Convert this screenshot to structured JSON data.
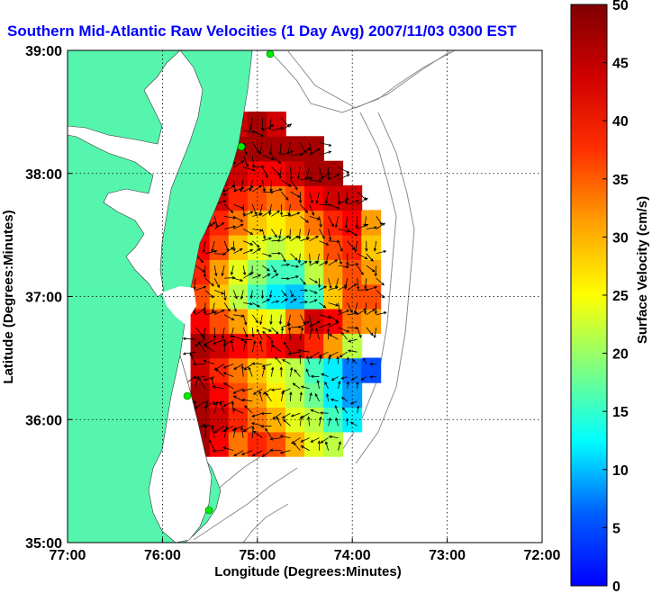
{
  "chart_data": {
    "type": "heatmap",
    "title": "Southern Mid-Atlantic Raw Velocities (1 Day Avg) 2007/11/03 0300 EST",
    "xlabel": "Longitude (Degrees:Minutes)",
    "ylabel": "Latitude (Degrees:Minutes)",
    "colorbar_label": "Surface Velocity (cm/s)",
    "x_ticks": [
      "77:00",
      "76:00",
      "75:00",
      "74:00",
      "73:00",
      "72:00"
    ],
    "y_ticks": [
      "39:00",
      "38:00",
      "37:00",
      "36:00",
      "35:00"
    ],
    "colorbar_ticks": [
      "50",
      "45",
      "40",
      "35",
      "30",
      "25",
      "20",
      "15",
      "10",
      "5",
      "0"
    ],
    "xlim": [
      -77,
      -72
    ],
    "ylim": [
      35,
      39
    ],
    "clim": [
      0,
      50
    ],
    "grid": "dotted",
    "colormap": "jet",
    "land_color": "#55f5ad",
    "title_color": "#0000ff",
    "field": {
      "lon": [
        -75.6,
        -75.4,
        -75.2,
        -75.0,
        -74.8,
        -74.6,
        -74.4,
        -74.2,
        -74.0,
        -73.8
      ],
      "lat": [
        35.8,
        36.0,
        36.2,
        36.4,
        36.6,
        36.8,
        37.0,
        37.2,
        37.4,
        37.6,
        37.8,
        38.0,
        38.2,
        38.4
      ],
      "speed": [
        [
          48,
          44,
          38,
          42,
          40,
          35,
          30,
          28,
          0,
          0
        ],
        [
          48,
          46,
          42,
          38,
          35,
          30,
          28,
          22,
          18,
          0
        ],
        [
          48,
          44,
          40,
          36,
          32,
          28,
          24,
          18,
          14,
          0
        ],
        [
          46,
          42,
          38,
          34,
          30,
          28,
          22,
          18,
          12,
          10
        ],
        [
          48,
          46,
          44,
          42,
          44,
          46,
          42,
          36,
          28,
          0
        ],
        [
          44,
          40,
          36,
          32,
          30,
          38,
          46,
          44,
          38,
          36
        ],
        [
          40,
          34,
          28,
          22,
          18,
          16,
          22,
          34,
          40,
          40
        ],
        [
          42,
          36,
          30,
          26,
          22,
          22,
          28,
          36,
          40,
          36
        ],
        [
          44,
          40,
          34,
          30,
          28,
          30,
          34,
          40,
          42,
          34
        ],
        [
          46,
          42,
          38,
          34,
          32,
          34,
          38,
          42,
          44,
          36
        ],
        [
          48,
          46,
          42,
          40,
          38,
          40,
          44,
          46,
          46,
          0
        ],
        [
          48,
          48,
          46,
          44,
          44,
          46,
          48,
          48,
          0,
          0
        ],
        [
          0,
          48,
          48,
          48,
          48,
          48,
          48,
          0,
          0,
          0
        ],
        [
          0,
          38,
          46,
          48,
          46,
          0,
          0,
          0,
          0,
          0
        ]
      ]
    }
  }
}
